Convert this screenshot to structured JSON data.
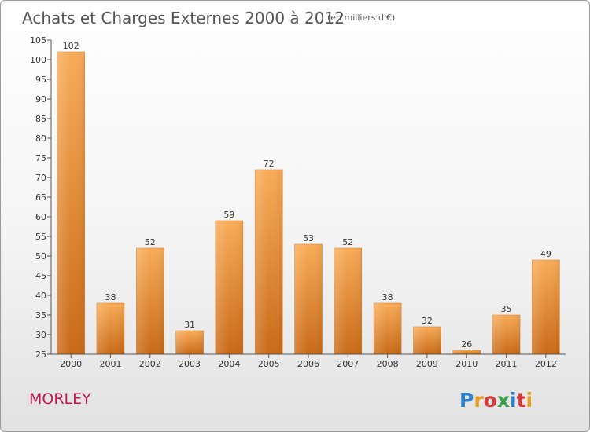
{
  "chart_data": {
    "type": "bar",
    "title": "Achats et Charges Externes 2000 à 2012",
    "subtitle": "(en milliers d'€)",
    "categories": [
      "2000",
      "2001",
      "2002",
      "2003",
      "2004",
      "2005",
      "2006",
      "2007",
      "2008",
      "2009",
      "2010",
      "2011",
      "2012"
    ],
    "values": [
      102,
      38,
      52,
      31,
      59,
      72,
      53,
      52,
      38,
      32,
      26,
      35,
      49
    ],
    "ylim": [
      25,
      105
    ],
    "yticks": [
      25,
      30,
      35,
      40,
      45,
      50,
      55,
      60,
      65,
      70,
      75,
      80,
      85,
      90,
      95,
      100,
      105
    ],
    "grid": false,
    "bar_color": "#f0a050"
  },
  "place": "MORLEY",
  "logo": {
    "text": "Proxiti",
    "colors": [
      "#2a7fc9",
      "#e8a020",
      "#d63b3b",
      "#3aa04a",
      "#2a7fc9",
      "#d63b3b",
      "#e8a020"
    ]
  }
}
